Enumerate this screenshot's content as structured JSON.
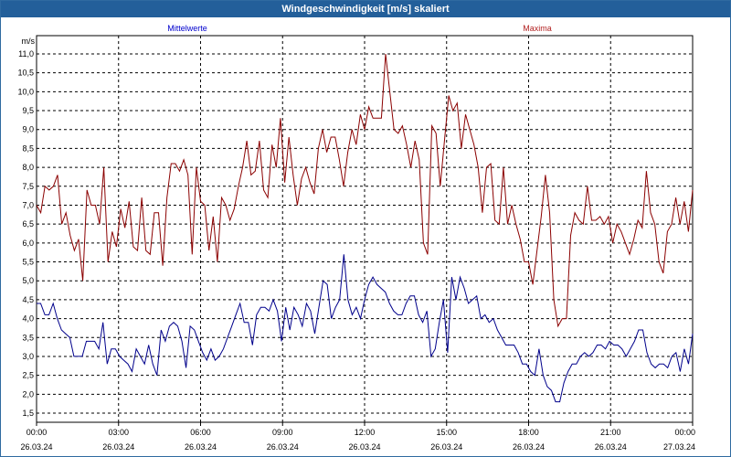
{
  "window": {
    "title": "Windgeschwindigkeit [m/s] skaliert"
  },
  "colors": {
    "mean": "#00008b",
    "max": "#8b0000",
    "titlebar": "#235f9a"
  },
  "chart_data": {
    "type": "line",
    "title": "Windgeschwindigkeit [m/s] skaliert",
    "ylabel": "m/s",
    "xlabel": "",
    "ylim": [
      1.5,
      11.0
    ],
    "xlim": [
      0,
      24
    ],
    "grid": true,
    "legend_placement": "top",
    "y_ticks": [
      "1,5",
      "2,0",
      "2,5",
      "3,0",
      "3,5",
      "4,0",
      "4,5",
      "5,0",
      "5,5",
      "6,0",
      "6,5",
      "7,0",
      "7,5",
      "8,0",
      "8,5",
      "9,0",
      "9,5",
      "10,0",
      "10,5",
      "11,0"
    ],
    "x_ticks": [
      {
        "time": "00:00",
        "date": "26.03.24"
      },
      {
        "time": "03:00",
        "date": "26.03.24"
      },
      {
        "time": "06:00",
        "date": "26.03.24"
      },
      {
        "time": "09:00",
        "date": "26.03.24"
      },
      {
        "time": "12:00",
        "date": "26.03.24"
      },
      {
        "time": "15:00",
        "date": "26.03.24"
      },
      {
        "time": "18:00",
        "date": "26.03.24"
      },
      {
        "time": "21:00",
        "date": "26.03.24"
      },
      {
        "time": "00:00",
        "date": "27.03.24"
      }
    ],
    "series": [
      {
        "name": "Mittelwerte",
        "color": "#00008b",
        "values": [
          4.4,
          4.4,
          4.1,
          4.1,
          4.4,
          4.0,
          3.7,
          3.6,
          3.5,
          3.0,
          3.0,
          3.0,
          3.4,
          3.4,
          3.4,
          3.2,
          3.9,
          2.8,
          3.2,
          3.2,
          3.0,
          2.9,
          2.8,
          2.6,
          3.2,
          3.0,
          2.8,
          3.3,
          2.8,
          2.5,
          3.7,
          3.4,
          3.8,
          3.9,
          3.8,
          3.4,
          2.7,
          3.8,
          3.7,
          3.4,
          3.1,
          2.9,
          3.2,
          2.9,
          3.0,
          3.2,
          3.5,
          3.8,
          4.1,
          4.4,
          3.9,
          3.9,
          3.3,
          4.1,
          4.3,
          4.3,
          4.2,
          4.5,
          4.2,
          3.4,
          4.3,
          3.7,
          4.3,
          4.1,
          3.8,
          4.4,
          4.2,
          3.6,
          4.3,
          5.0,
          4.9,
          4.0,
          4.3,
          4.5,
          5.7,
          4.5,
          4.1,
          4.3,
          4.0,
          4.5,
          4.9,
          5.1,
          4.9,
          4.8,
          4.7,
          4.4,
          4.2,
          4.1,
          4.1,
          4.4,
          4.6,
          4.6,
          4.1,
          3.9,
          4.2,
          3.0,
          3.2,
          3.9,
          4.5,
          3.1,
          5.1,
          4.5,
          5.1,
          4.8,
          4.4,
          4.5,
          4.6,
          4.0,
          4.1,
          3.9,
          4.0,
          3.7,
          3.5,
          3.3,
          3.3,
          3.3,
          3.1,
          2.8,
          2.8,
          2.6,
          2.5,
          3.2,
          2.5,
          2.2,
          2.1,
          1.8,
          1.8,
          2.3,
          2.6,
          2.8,
          2.8,
          3.0,
          3.1,
          3.0,
          3.1,
          3.3,
          3.3,
          3.2,
          3.4,
          3.3,
          3.3,
          3.2,
          3.0,
          3.2,
          3.4,
          3.7,
          3.7,
          3.1,
          2.8,
          2.7,
          2.8,
          2.8,
          2.7,
          3.0,
          3.1,
          2.6,
          3.2,
          2.8,
          3.6
        ]
      },
      {
        "name": "Maxima",
        "color": "#8b0000",
        "values": [
          7.0,
          6.8,
          7.5,
          7.4,
          7.5,
          7.8,
          6.5,
          6.8,
          6.2,
          5.8,
          6.1,
          5.0,
          7.4,
          7.0,
          7.0,
          6.5,
          8.0,
          5.5,
          6.3,
          5.9,
          6.9,
          6.4,
          7.1,
          5.9,
          5.8,
          7.2,
          5.8,
          5.7,
          6.8,
          6.8,
          5.4,
          7.2,
          8.1,
          8.1,
          7.9,
          8.2,
          7.8,
          5.7,
          8.0,
          7.1,
          7.0,
          5.8,
          6.7,
          5.5,
          7.2,
          7.0,
          6.6,
          6.9,
          7.5,
          8.0,
          8.7,
          7.8,
          7.9,
          8.7,
          7.4,
          7.2,
          8.6,
          8.0,
          9.3,
          7.6,
          8.8,
          7.8,
          7.0,
          7.7,
          8.0,
          7.6,
          7.3,
          8.5,
          9.0,
          8.4,
          8.8,
          8.8,
          8.2,
          7.5,
          8.4,
          9.0,
          8.6,
          9.4,
          9.0,
          9.6,
          9.3,
          9.3,
          9.3,
          11.0,
          10.0,
          9.0,
          8.9,
          9.1,
          8.6,
          8.0,
          8.7,
          8.2,
          6.0,
          5.7,
          9.1,
          8.9,
          7.5,
          8.7,
          9.9,
          9.5,
          9.7,
          8.5,
          9.4,
          9.0,
          8.6,
          8.0,
          6.8,
          8.0,
          8.1,
          6.6,
          6.5,
          8.0,
          6.5,
          7.0,
          6.5,
          6.1,
          5.5,
          5.5,
          4.9,
          5.8,
          6.7,
          7.8,
          6.8,
          4.5,
          3.8,
          4.0,
          4.0,
          6.2,
          6.8,
          6.6,
          6.5,
          7.5,
          6.6,
          6.6,
          6.7,
          6.5,
          6.7,
          6.0,
          6.5,
          6.3,
          6.0,
          5.7,
          6.1,
          6.6,
          6.4,
          7.9,
          6.8,
          6.5,
          5.5,
          5.2,
          6.3,
          6.5,
          7.2,
          6.5,
          7.1,
          6.3,
          7.4
        ]
      }
    ]
  }
}
